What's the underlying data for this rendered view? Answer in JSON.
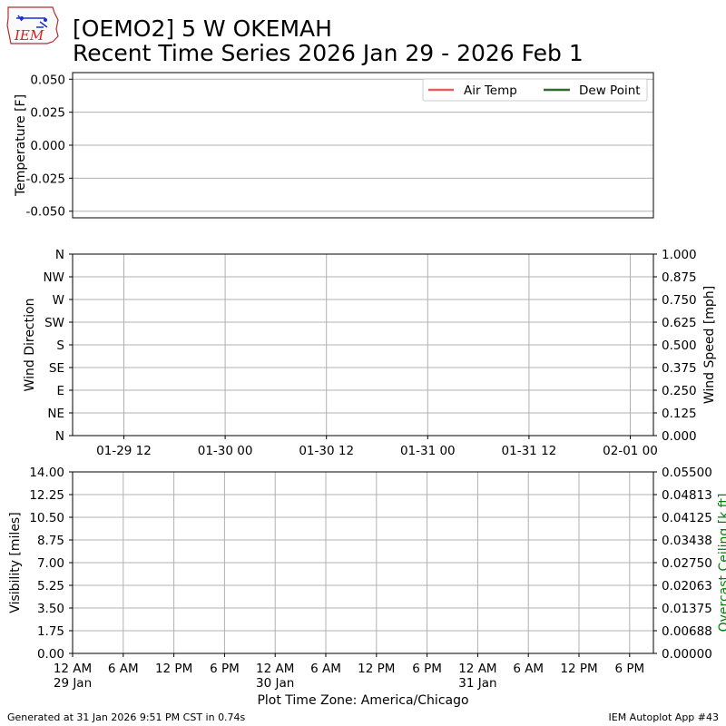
{
  "header": {
    "logo_text": "IEM",
    "title_line1": "[OEMO2] 5 W OKEMAH",
    "title_line2": "Recent Time Series 2026 Jan 29 - 2026 Feb 1"
  },
  "footer": {
    "generated": "Generated at 31 Jan 2026 9:51 PM CST in 0.74s",
    "app": "IEM Autoplot App #43",
    "timezone_label": "Plot Time Zone: America/Chicago"
  },
  "colors": {
    "air_temp": "#e06060",
    "dew_point": "#2e6b2e",
    "ceiling_label": "#008000",
    "grid": "#b0b0b0"
  },
  "chart_data": [
    {
      "type": "line",
      "ylabel": "Temperature [F]",
      "ylim": [
        -0.055,
        0.055
      ],
      "yticks": [
        "0.050",
        "0.025",
        "0.000",
        "-0.025",
        "-0.050"
      ],
      "ytick_values": [
        0.05,
        0.025,
        0.0,
        -0.025,
        -0.05
      ],
      "grid": true,
      "legend_position": "top-right",
      "series": [
        {
          "name": "Air Temp",
          "color": "#e06060",
          "values": []
        },
        {
          "name": "Dew Point",
          "color": "#2e6b2e",
          "values": []
        }
      ]
    },
    {
      "type": "scatter",
      "ylabel": "Wind Direction",
      "yticks": [
        "N",
        "NW",
        "W",
        "SW",
        "S",
        "SE",
        "E",
        "NE",
        "N"
      ],
      "ytick_values": [
        360,
        315,
        270,
        225,
        180,
        135,
        90,
        45,
        0
      ],
      "ylim": [
        0,
        360
      ],
      "y2label": "Wind Speed [mph]",
      "y2ticks": [
        "1.000",
        "0.875",
        "0.750",
        "0.625",
        "0.500",
        "0.375",
        "0.250",
        "0.125",
        "0.000"
      ],
      "y2lim": [
        0,
        1
      ],
      "xticks": [
        "01-29 12",
        "01-30 00",
        "01-30 12",
        "01-31 00",
        "01-31 12",
        "02-01 00"
      ],
      "grid": true,
      "series": []
    },
    {
      "type": "line",
      "ylabel": "Visibility [miles]",
      "yticks": [
        "14.00",
        "12.25",
        "10.50",
        "8.75",
        "7.00",
        "5.25",
        "3.50",
        "1.75",
        "0.00"
      ],
      "ylim": [
        0,
        14
      ],
      "y2label": "Overcast Ceiling [k ft]",
      "y2ticks": [
        "0.05500",
        "0.04813",
        "0.04125",
        "0.03438",
        "0.02750",
        "0.02063",
        "0.01375",
        "0.00688",
        "0.00000"
      ],
      "y2lim": [
        0,
        0.055
      ],
      "xticks": [
        [
          "12 AM",
          "29 Jan"
        ],
        [
          "6 AM"
        ],
        [
          "12 PM"
        ],
        [
          "6 PM"
        ],
        [
          "12 AM",
          "30 Jan"
        ],
        [
          "6 AM"
        ],
        [
          "12 PM"
        ],
        [
          "6 PM"
        ],
        [
          "12 AM",
          "31 Jan"
        ],
        [
          "6 AM"
        ],
        [
          "12 PM"
        ],
        [
          "6 PM"
        ]
      ],
      "grid": true,
      "series": []
    }
  ]
}
